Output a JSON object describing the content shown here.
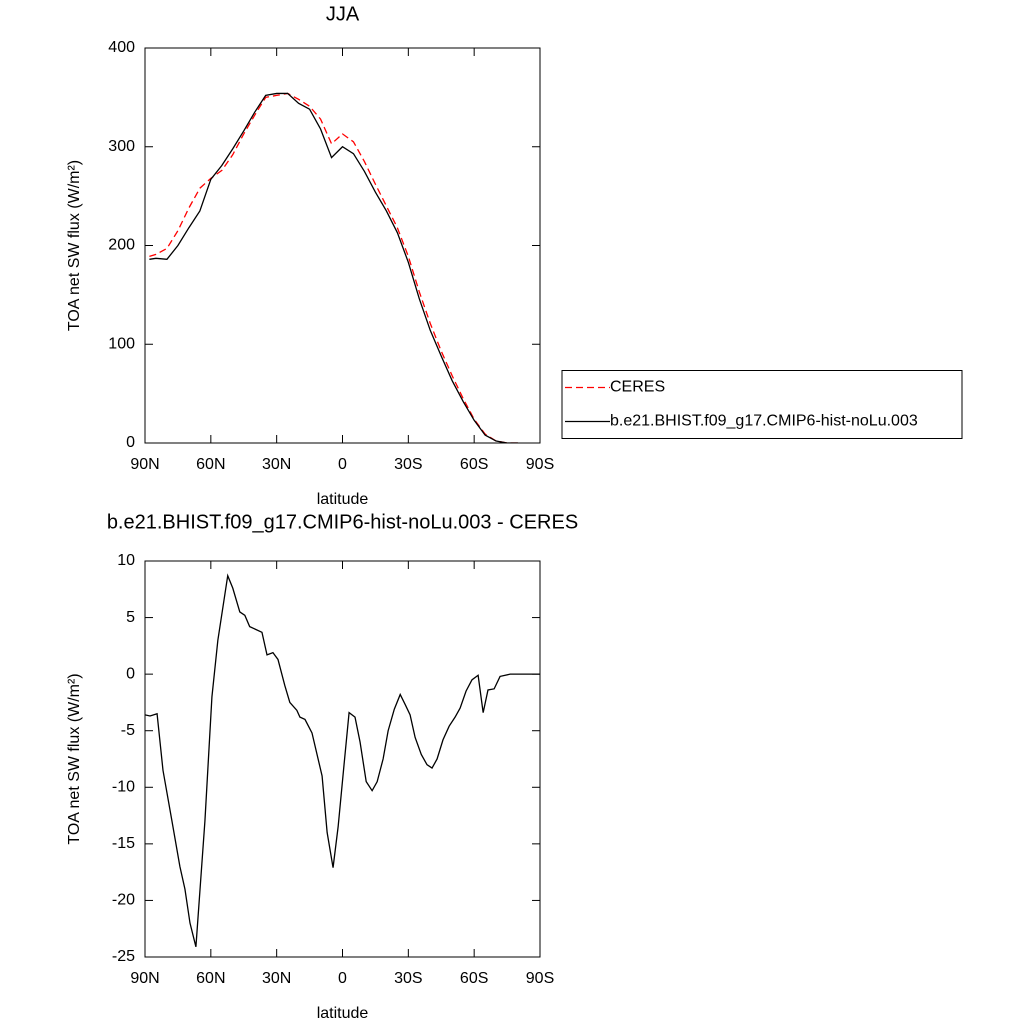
{
  "chart_data": [
    {
      "type": "line",
      "title": "JJA",
      "x_label": "latitude",
      "y_label": "TOA net SW flux (W/m²)",
      "x": [
        88,
        85,
        80,
        75,
        70,
        65,
        60,
        55,
        50,
        45,
        40,
        35,
        30,
        25,
        20,
        15,
        10,
        5,
        0,
        -5,
        -10,
        -15,
        -20,
        -25,
        -30,
        -35,
        -40,
        -45,
        -50,
        -55,
        -60,
        -65,
        -70,
        -75,
        -80
      ],
      "series": [
        {
          "name": "CERES",
          "color": "#ff0000",
          "dashed": true,
          "values": [
            189,
            191,
            197,
            215,
            238,
            258,
            268,
            276,
            292,
            313,
            332,
            350,
            352,
            354,
            348,
            341,
            328,
            303,
            313,
            305,
            285,
            262,
            240,
            218,
            189,
            153,
            121,
            93,
            68,
            45,
            24,
            9,
            2,
            0,
            0
          ]
        },
        {
          "name": "b.e21.BHIST.f09_g17.CMIP6-hist-noLu.003",
          "color": "#000000",
          "dashed": false,
          "values": [
            186,
            187,
            186,
            200,
            218,
            235,
            267,
            281,
            298,
            316,
            335,
            352,
            354,
            354,
            344,
            338,
            318,
            289,
            300,
            293,
            275,
            254,
            235,
            213,
            183,
            146,
            114,
            88,
            63,
            42,
            23,
            8,
            2,
            0,
            0
          ]
        }
      ],
      "xlim": [
        90,
        -90
      ],
      "xticks": [
        {
          "value": 90,
          "label": "90N"
        },
        {
          "value": 60,
          "label": "60N"
        },
        {
          "value": 30,
          "label": "30N"
        },
        0,
        {
          "value": -30,
          "label": "30S"
        },
        {
          "value": -60,
          "label": "60S"
        },
        {
          "value": -90,
          "label": "90S"
        }
      ],
      "ylim": [
        0,
        400
      ],
      "yticks": [
        0,
        100,
        200,
        300,
        400
      ],
      "legend": "right"
    },
    {
      "type": "line",
      "title": "b.e21.BHIST.f09_g17.CMIP6-hist-noLu.003 - CERES",
      "x_label": "latitude",
      "y_label": "TOA net SW flux (W/m²)",
      "x": [
        90,
        87.7,
        84.5,
        81.8,
        77.7,
        74.1,
        71.8,
        69.5,
        66.8,
        62.7,
        59.5,
        56.8,
        52.3,
        50,
        46.8,
        44.5,
        42.3,
        36.7,
        34.4,
        31.7,
        29.4,
        26.3,
        24,
        20.8,
        19.4,
        17.1,
        13.9,
        9.3,
        7,
        4.3,
        2,
        -0.7,
        -3,
        -5.7,
        -8,
        -10.8,
        -13.5,
        -15.8,
        -18.5,
        -20.8,
        -23.6,
        -26.3,
        -28.6,
        -30.8,
        -33.1,
        -35.9,
        -38.5,
        -40.8,
        -43.1,
        -45.8,
        -48.6,
        -51.3,
        -53.6,
        -56.3,
        -59,
        -61.8,
        -64.1,
        -66.3,
        -69.1,
        -71.8,
        -76.4,
        -90
      ],
      "series": [
        {
          "color": "#000000",
          "dashed": false,
          "values": [
            -3.6,
            -3.7,
            -3.5,
            -8.5,
            -13,
            -17,
            -19,
            -22,
            -24.1,
            -13,
            -2,
            3,
            8.7,
            7.6,
            5.5,
            5.2,
            4.2,
            3.7,
            1.7,
            1.9,
            1.3,
            -1,
            -2.5,
            -3.2,
            -3.8,
            -4,
            -5.2,
            -9,
            -14,
            -17.1,
            -13.5,
            -8,
            -3.4,
            -3.8,
            -6,
            -9.5,
            -10.3,
            -9.5,
            -7.5,
            -5,
            -3.1,
            -1.8,
            -2.7,
            -3.6,
            -5.6,
            -7.1,
            -8,
            -8.3,
            -7.5,
            -5.8,
            -4.6,
            -3.8,
            -3,
            -1.5,
            -0.5,
            -0.1,
            -3.4,
            -1.4,
            -1.3,
            -0.2,
            0,
            0
          ]
        }
      ],
      "xlim": [
        90,
        -90
      ],
      "xticks": [
        {
          "value": 90,
          "label": "90N"
        },
        {
          "value": 60,
          "label": "60N"
        },
        {
          "value": 30,
          "label": "30N"
        },
        0,
        {
          "value": -30,
          "label": "30S"
        },
        {
          "value": -60,
          "label": "60S"
        },
        {
          "value": -90,
          "label": "90S"
        }
      ],
      "ylim": [
        -25,
        10
      ],
      "yticks": [
        -25,
        -20,
        -15,
        -10,
        -5,
        0,
        5,
        10
      ]
    }
  ]
}
